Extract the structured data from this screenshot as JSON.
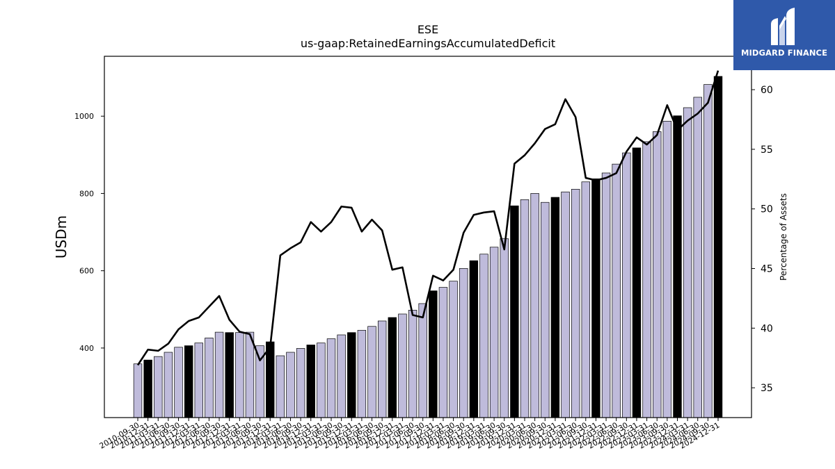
{
  "title": "ESE",
  "subtitle": "us-gaap:RetainedEarningsAccumulatedDeficit",
  "brand": {
    "name": "MIDGARD FINANCE",
    "logo": "midgard-m-logo-icon",
    "background": "#2f59aa"
  },
  "colors": {
    "bar": "#bfbbdb",
    "bar_fy": "#000000",
    "line": "#000000"
  },
  "chart_data": {
    "type": "bar",
    "ylabel": "USDm",
    "y2label": "Percentage of Assets",
    "ylim": [
      220,
      1155
    ],
    "y2lim": [
      32.5,
      62.8
    ],
    "yticks": [
      400,
      600,
      800,
      1000
    ],
    "y2ticks": [
      35,
      40,
      45,
      50,
      55,
      60
    ],
    "grid": false,
    "categories": [
      "2010-09-30",
      "2010-12-31",
      "2011-03-31",
      "2011-06-30",
      "2011-09-30",
      "2011-12-31",
      "2012-03-31",
      "2012-06-30",
      "2012-09-30",
      "2012-12-31",
      "2013-03-31",
      "2013-06-30",
      "2013-09-30",
      "2013-12-31",
      "2014-03-31",
      "2014-06-30",
      "2014-09-30",
      "2014-12-31",
      "2015-03-31",
      "2015-06-30",
      "2015-09-30",
      "2015-12-31",
      "2016-03-31",
      "2016-06-30",
      "2016-09-30",
      "2016-12-31",
      "2017-03-31",
      "2017-06-30",
      "2017-09-30",
      "2017-12-31",
      "2018-03-31",
      "2018-06-30",
      "2018-09-30",
      "2018-12-31",
      "2019-03-31",
      "2019-06-30",
      "2019-09-30",
      "2019-12-31",
      "2020-03-31",
      "2020-06-30",
      "2020-09-30",
      "2020-12-31",
      "2021-03-31",
      "2021-06-30",
      "2021-09-30",
      "2021-12-31",
      "2022-03-31",
      "2022-06-30",
      "2022-09-30",
      "2022-12-31",
      "2023-03-31",
      "2023-06-30",
      "2023-09-30",
      "2023-12-31",
      "2024-03-31",
      "2024-06-30",
      "2024-09-30",
      "2024-12-31"
    ],
    "series": [
      {
        "type": "bar",
        "values": [
          359,
          369,
          378,
          389,
          402,
          406,
          413,
          426,
          441,
          440,
          440,
          441,
          406,
          416,
          380,
          389,
          399,
          408,
          413,
          424,
          434,
          440,
          446,
          456,
          470,
          479,
          488,
          498,
          515,
          548,
          557,
          573,
          606,
          626,
          643,
          661,
          683,
          768,
          784,
          800,
          777,
          790,
          804,
          811,
          830,
          838,
          853,
          876,
          905,
          918,
          934,
          960,
          987,
          1001,
          1022,
          1049,
          1082,
          1103
        ],
        "fiscal_year_end": [
          false,
          true,
          false,
          false,
          false,
          true,
          false,
          false,
          false,
          true,
          false,
          false,
          false,
          true,
          false,
          false,
          false,
          true,
          false,
          false,
          false,
          true,
          false,
          false,
          false,
          true,
          false,
          false,
          false,
          true,
          false,
          false,
          false,
          true,
          false,
          false,
          false,
          true,
          false,
          false,
          false,
          true,
          false,
          false,
          false,
          true,
          false,
          false,
          false,
          true,
          false,
          false,
          false,
          true,
          false,
          false,
          false,
          true
        ]
      },
      {
        "type": "line",
        "axis": "right",
        "values": [
          36.9,
          38.2,
          38.1,
          38.7,
          39.9,
          40.6,
          40.9,
          41.8,
          42.7,
          40.7,
          39.7,
          39.5,
          37.3,
          38.4,
          46.1,
          46.7,
          47.2,
          48.9,
          48.1,
          48.9,
          50.2,
          50.1,
          48.1,
          49.1,
          48.2,
          44.9,
          45.1,
          41.1,
          40.9,
          44.4,
          44.0,
          44.9,
          48.0,
          49.5,
          49.7,
          49.8,
          46.6,
          53.8,
          54.5,
          55.5,
          56.7,
          57.1,
          59.2,
          57.7,
          52.6,
          52.4,
          52.6,
          53.0,
          54.8,
          56.0,
          55.4,
          56.2,
          58.7,
          56.6,
          57.4,
          58.0,
          58.9,
          61.6
        ]
      }
    ]
  }
}
